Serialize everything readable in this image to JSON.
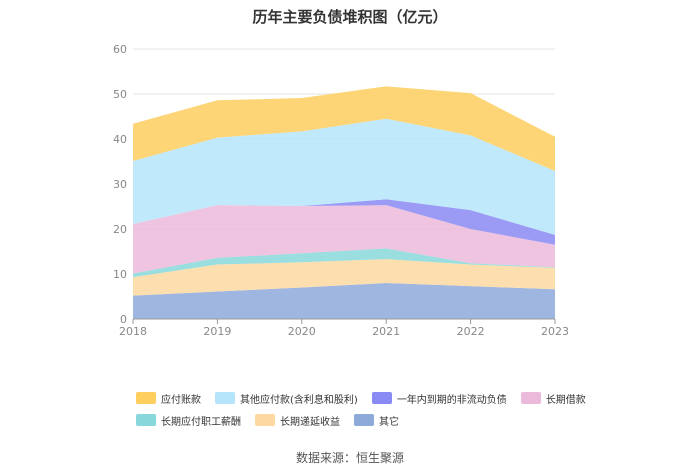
{
  "chart_data": {
    "type": "area",
    "stacked": true,
    "title": "历年主要负债堆积图（亿元）",
    "x": [
      "2018",
      "2019",
      "2020",
      "2021",
      "2022",
      "2023"
    ],
    "ylim": [
      0,
      60
    ],
    "yticks": [
      "0",
      "10",
      "20",
      "30",
      "40",
      "50",
      "60"
    ],
    "grid": true,
    "legend_position": "bottom",
    "series": [
      {
        "name": "其它",
        "color": "#8eaadb",
        "values": [
          5.2,
          6.1,
          7.0,
          8.0,
          7.3,
          6.6
        ]
      },
      {
        "name": "长期递延收益",
        "color": "#fdd9a1",
        "values": [
          4.1,
          6.0,
          5.6,
          5.3,
          4.8,
          4.8
        ]
      },
      {
        "name": "长期应付职工薪酬",
        "color": "#88d8db",
        "values": [
          0.8,
          1.5,
          2.0,
          2.4,
          0.3,
          0.1
        ]
      },
      {
        "name": "长期借款",
        "color": "#ebbadb",
        "values": [
          11.0,
          11.7,
          10.5,
          9.6,
          7.6,
          5.0
        ]
      },
      {
        "name": "一年内到期的非流动负债",
        "color": "#8a8af5",
        "values": [
          0.0,
          0.0,
          0.0,
          1.3,
          4.2,
          2.2
        ]
      },
      {
        "name": "其他应付款(含利息和股利)",
        "color": "#b5e5fa",
        "values": [
          14.0,
          15.0,
          16.6,
          17.9,
          16.6,
          14.2
        ]
      },
      {
        "name": "应付账款",
        "color": "#fece5e",
        "values": [
          8.3,
          8.3,
          7.4,
          7.2,
          9.4,
          7.6
        ]
      }
    ],
    "legend_order": [
      "应付账款",
      "其他应付款(含利息和股利)",
      "一年内到期的非流动负债",
      "长期借款",
      "长期应付职工薪酬",
      "长期递延收益",
      "其它"
    ]
  },
  "source_text": "数据来源：恒生聚源"
}
